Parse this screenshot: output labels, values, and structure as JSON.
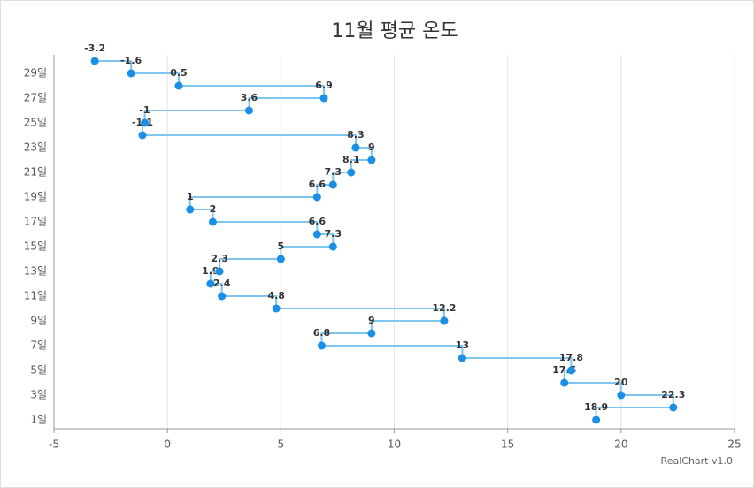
{
  "chart_data": {
    "type": "step",
    "title": "11월 평균 온도",
    "credit": "RealChart v1.0",
    "categories": [
      "1일",
      null,
      "3일",
      null,
      "5일",
      null,
      "7일",
      null,
      "9일",
      null,
      "11일",
      null,
      "13일",
      null,
      "15일",
      null,
      "17일",
      null,
      "19일",
      null,
      "21일",
      null,
      "23일",
      null,
      "25일",
      null,
      "27일",
      null,
      "29일",
      null
    ],
    "values": [
      18.9,
      22.3,
      20,
      17.5,
      17.8,
      13,
      6.8,
      9,
      12.2,
      4.8,
      2.4,
      1.9,
      2.3,
      5,
      7.3,
      6.6,
      2,
      1,
      6.6,
      7.3,
      8.1,
      9,
      8.3,
      -1.1,
      -1,
      3.6,
      6.9,
      0.5,
      -1.6,
      -3.2
    ],
    "xlim": [
      -5,
      25
    ],
    "xticks": [
      -5,
      0,
      5,
      10,
      15,
      20,
      25
    ],
    "line_color": "#7ec6ef",
    "color": "#1a8fe6",
    "grid": true
  }
}
